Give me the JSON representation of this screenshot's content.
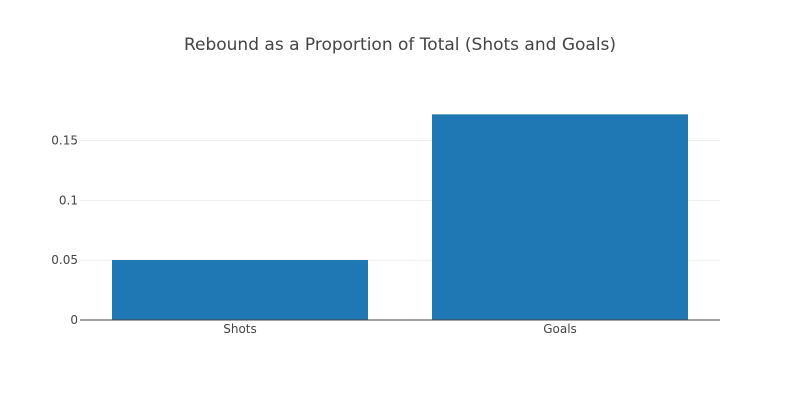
{
  "chart_data": {
    "type": "bar",
    "title": "Rebound as a Proportion of Total (Shots and Goals)",
    "xlabel": "",
    "ylabel": "",
    "categories": [
      "Shots",
      "Goals"
    ],
    "values": [
      0.0502,
      0.172
    ],
    "ylim": [
      0,
      0.184
    ],
    "yticks": [
      0,
      0.05,
      0.1,
      0.15
    ],
    "ytick_labels": [
      "0",
      "0.05",
      "0.1",
      "0.15"
    ],
    "grid": true,
    "legend": "none",
    "colors": {
      "bar": "#1f77b4",
      "grid": "#eeeeee",
      "axis": "#444444",
      "text": "#444444"
    }
  }
}
